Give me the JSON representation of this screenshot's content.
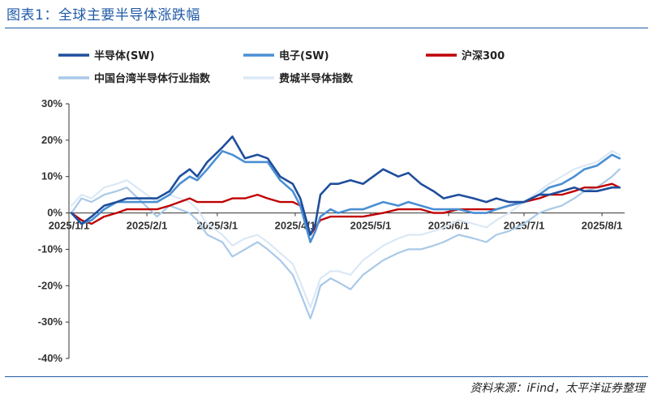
{
  "header": {
    "title": "图表1：全球主要半导体涨跌幅"
  },
  "footer": {
    "source": "资料来源：iFind，太平洋证券整理"
  },
  "chart_data": {
    "type": "line",
    "y_unit": "%",
    "ylim": [
      -40,
      30
    ],
    "yticks": [
      30,
      20,
      10,
      0,
      -10,
      -20,
      -30,
      -40
    ],
    "ytick_labels": [
      "30%",
      "20%",
      "10%",
      "0%",
      "-10%",
      "-20%",
      "-30%",
      "-40%"
    ],
    "xlim": [
      "2025-01-01",
      "2025-08-10"
    ],
    "x_ticks": [
      "2025-01-01",
      "2025-02-01",
      "2025-03-01",
      "2025-04-01",
      "2025-05-01",
      "2025-06-01",
      "2025-07-01",
      "2025-08-01"
    ],
    "x_tick_labels": [
      "2025/1/1",
      "2025/2/1",
      "2025/3/1",
      "2025/4/1",
      "2025/5/1",
      "2025/6/1",
      "2025/7/1",
      "2025/8/1"
    ],
    "grid": false,
    "legend_position": "top",
    "series": [
      {
        "name": "半导体(SW)",
        "color": "#1f4e9c",
        "x": [
          "2025-01-02",
          "2025-01-06",
          "2025-01-10",
          "2025-01-15",
          "2025-01-20",
          "2025-01-24",
          "2025-02-05",
          "2025-02-10",
          "2025-02-14",
          "2025-02-18",
          "2025-02-21",
          "2025-02-25",
          "2025-03-03",
          "2025-03-07",
          "2025-03-12",
          "2025-03-17",
          "2025-03-21",
          "2025-03-26",
          "2025-03-31",
          "2025-04-03",
          "2025-04-07",
          "2025-04-09",
          "2025-04-11",
          "2025-04-15",
          "2025-04-18",
          "2025-04-23",
          "2025-04-28",
          "2025-05-06",
          "2025-05-12",
          "2025-05-16",
          "2025-05-21",
          "2025-05-26",
          "2025-05-30",
          "2025-06-05",
          "2025-06-11",
          "2025-06-16",
          "2025-06-20",
          "2025-06-25",
          "2025-07-01",
          "2025-07-07",
          "2025-07-11",
          "2025-07-16",
          "2025-07-21",
          "2025-07-25",
          "2025-07-30",
          "2025-08-05",
          "2025-08-08"
        ],
        "y": [
          0,
          -3,
          -1,
          2,
          3,
          4,
          4,
          6,
          10,
          12,
          10,
          14,
          18,
          21,
          15,
          16,
          15,
          10,
          8,
          4,
          -6,
          -3,
          5,
          8,
          8,
          9,
          8,
          12,
          10,
          11,
          8,
          6,
          4,
          5,
          4,
          3,
          4,
          3,
          3,
          5,
          5,
          6,
          7,
          6,
          6,
          7,
          7
        ]
      },
      {
        "name": "电子(SW)",
        "color": "#4a8fd4",
        "x": [
          "2025-01-02",
          "2025-01-06",
          "2025-01-10",
          "2025-01-15",
          "2025-01-20",
          "2025-01-24",
          "2025-02-05",
          "2025-02-10",
          "2025-02-14",
          "2025-02-18",
          "2025-02-21",
          "2025-02-25",
          "2025-03-03",
          "2025-03-07",
          "2025-03-12",
          "2025-03-17",
          "2025-03-21",
          "2025-03-26",
          "2025-03-31",
          "2025-04-03",
          "2025-04-07",
          "2025-04-09",
          "2025-04-11",
          "2025-04-15",
          "2025-04-18",
          "2025-04-23",
          "2025-04-28",
          "2025-05-06",
          "2025-05-12",
          "2025-05-16",
          "2025-05-21",
          "2025-05-26",
          "2025-05-30",
          "2025-06-05",
          "2025-06-11",
          "2025-06-16",
          "2025-06-20",
          "2025-06-25",
          "2025-07-01",
          "2025-07-07",
          "2025-07-11",
          "2025-07-16",
          "2025-07-21",
          "2025-07-25",
          "2025-07-30",
          "2025-08-05",
          "2025-08-08"
        ],
        "y": [
          0,
          -3,
          -2,
          1,
          3,
          3,
          3,
          5,
          8,
          10,
          9,
          12,
          17,
          16,
          14,
          14,
          14,
          9,
          6,
          2,
          -8,
          -5,
          -1,
          1,
          0,
          1,
          1,
          3,
          2,
          3,
          2,
          1,
          1,
          1,
          0,
          0,
          1,
          2,
          3,
          5,
          7,
          8,
          10,
          12,
          13,
          16,
          15
        ]
      },
      {
        "name": "沪深300",
        "color": "#c00000",
        "x": [
          "2025-01-02",
          "2025-01-06",
          "2025-01-10",
          "2025-01-15",
          "2025-01-20",
          "2025-01-24",
          "2025-02-05",
          "2025-02-10",
          "2025-02-14",
          "2025-02-18",
          "2025-02-21",
          "2025-02-25",
          "2025-03-03",
          "2025-03-07",
          "2025-03-12",
          "2025-03-17",
          "2025-03-21",
          "2025-03-26",
          "2025-03-31",
          "2025-04-03",
          "2025-04-07",
          "2025-04-09",
          "2025-04-11",
          "2025-04-15",
          "2025-04-18",
          "2025-04-23",
          "2025-04-28",
          "2025-05-06",
          "2025-05-12",
          "2025-05-16",
          "2025-05-21",
          "2025-05-26",
          "2025-05-30",
          "2025-06-05",
          "2025-06-11",
          "2025-06-16",
          "2025-06-20",
          "2025-06-25",
          "2025-07-01",
          "2025-07-07",
          "2025-07-11",
          "2025-07-16",
          "2025-07-21",
          "2025-07-25",
          "2025-07-30",
          "2025-08-05",
          "2025-08-08"
        ],
        "y": [
          0,
          -2,
          -3,
          -1,
          0,
          1,
          1,
          2,
          3,
          4,
          3,
          3,
          3,
          4,
          4,
          5,
          4,
          3,
          3,
          2,
          -6,
          -4,
          -2,
          -1,
          -1,
          -1,
          -1,
          0,
          1,
          1,
          1,
          0,
          0,
          1,
          1,
          1,
          1,
          2,
          3,
          4,
          5,
          5,
          6,
          7,
          7,
          8,
          7
        ]
      },
      {
        "name": "中国台湾半导体行业指数",
        "color": "#a9c9e8",
        "x": [
          "2025-01-02",
          "2025-01-06",
          "2025-01-10",
          "2025-01-15",
          "2025-01-20",
          "2025-01-24",
          "2025-02-05",
          "2025-02-10",
          "2025-02-14",
          "2025-02-18",
          "2025-02-21",
          "2025-02-25",
          "2025-03-03",
          "2025-03-07",
          "2025-03-12",
          "2025-03-17",
          "2025-03-21",
          "2025-03-26",
          "2025-03-31",
          "2025-04-03",
          "2025-04-07",
          "2025-04-09",
          "2025-04-11",
          "2025-04-15",
          "2025-04-18",
          "2025-04-23",
          "2025-04-28",
          "2025-05-06",
          "2025-05-12",
          "2025-05-16",
          "2025-05-21",
          "2025-05-26",
          "2025-05-30",
          "2025-06-05",
          "2025-06-11",
          "2025-06-16",
          "2025-06-20",
          "2025-06-25",
          "2025-07-01",
          "2025-07-07",
          "2025-07-11",
          "2025-07-16",
          "2025-07-21",
          "2025-07-25",
          "2025-07-30",
          "2025-08-05",
          "2025-08-08"
        ],
        "y": [
          0,
          4,
          3,
          5,
          6,
          7,
          -1,
          2,
          1,
          0,
          -2,
          -6,
          -8,
          -12,
          -10,
          -8,
          -10,
          -13,
          -17,
          -22,
          -29,
          -25,
          -20,
          -18,
          -19,
          -21,
          -17,
          -13,
          -11,
          -10,
          -10,
          -9,
          -8,
          -6,
          -7,
          -8,
          -6,
          -5,
          -3,
          0,
          1,
          2,
          4,
          6,
          7,
          10,
          12
        ]
      },
      {
        "name": "费城半导体指数",
        "color": "#dbe8f5",
        "x": [
          "2025-01-02",
          "2025-01-06",
          "2025-01-10",
          "2025-01-15",
          "2025-01-20",
          "2025-01-24",
          "2025-02-05",
          "2025-02-10",
          "2025-02-14",
          "2025-02-18",
          "2025-02-21",
          "2025-02-25",
          "2025-03-03",
          "2025-03-07",
          "2025-03-12",
          "2025-03-17",
          "2025-03-21",
          "2025-03-26",
          "2025-03-31",
          "2025-04-03",
          "2025-04-07",
          "2025-04-09",
          "2025-04-11",
          "2025-04-15",
          "2025-04-18",
          "2025-04-23",
          "2025-04-28",
          "2025-05-06",
          "2025-05-12",
          "2025-05-16",
          "2025-05-21",
          "2025-05-26",
          "2025-05-30",
          "2025-06-05",
          "2025-06-11",
          "2025-06-16",
          "2025-06-20",
          "2025-06-25",
          "2025-07-01",
          "2025-07-07",
          "2025-07-11",
          "2025-07-16",
          "2025-07-21",
          "2025-07-25",
          "2025-07-30",
          "2025-08-05",
          "2025-08-08"
        ],
        "y": [
          2,
          5,
          4,
          7,
          8,
          9,
          3,
          5,
          4,
          3,
          1,
          -3,
          -6,
          -9,
          -7,
          -6,
          -8,
          -11,
          -14,
          -19,
          -26,
          -22,
          -18,
          -16,
          -16,
          -17,
          -13,
          -9,
          -7,
          -6,
          -6,
          -5,
          -4,
          -2,
          -3,
          -4,
          -2,
          0,
          3,
          6,
          8,
          10,
          12,
          13,
          14,
          17,
          16
        ]
      }
    ]
  }
}
